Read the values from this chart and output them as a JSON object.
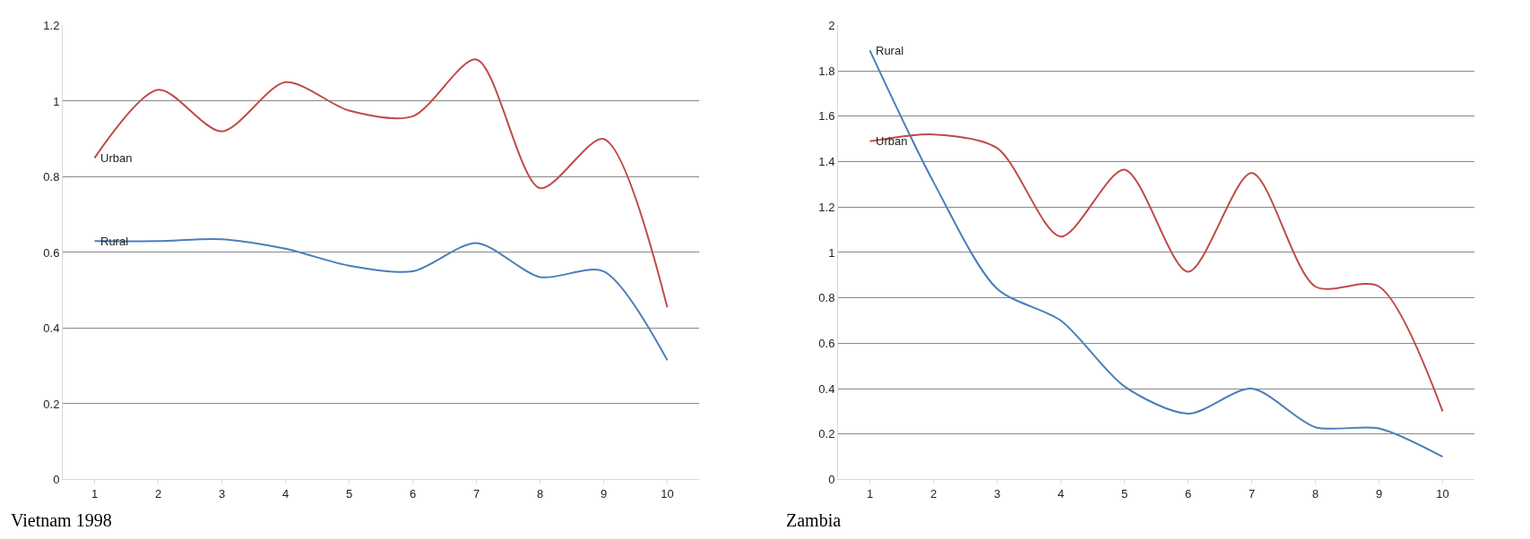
{
  "chart_data": [
    {
      "type": "line",
      "x": [
        1,
        2,
        3,
        4,
        5,
        6,
        7,
        8,
        9,
        10
      ],
      "xlim": [
        0.5,
        10.5
      ],
      "xticks": [
        1,
        2,
        3,
        4,
        5,
        6,
        7,
        8,
        9,
        10
      ],
      "ylim": [
        0,
        1.2
      ],
      "yticks": [
        0,
        0.2,
        0.4,
        0.6,
        0.8,
        1,
        1.2
      ],
      "grid": "y",
      "legend": false,
      "marker": "none",
      "line_style": "solid",
      "annotations": [
        "Vietnam 1998"
      ],
      "series": [
        {
          "name": "Urban",
          "color": "#be4b48",
          "values": [
            0.85,
            1.03,
            0.92,
            1.05,
            0.975,
            0.96,
            1.11,
            0.77,
            0.9,
            0.455
          ]
        },
        {
          "name": "Rural",
          "color": "#4a7ebb",
          "values": [
            0.63,
            0.63,
            0.635,
            0.61,
            0.565,
            0.55,
            0.625,
            0.535,
            0.55,
            0.315
          ]
        }
      ]
    },
    {
      "type": "line",
      "x": [
        1,
        2,
        3,
        4,
        5,
        6,
        7,
        8,
        9,
        10
      ],
      "xlim": [
        0.5,
        10.5
      ],
      "xticks": [
        1,
        2,
        3,
        4,
        5,
        6,
        7,
        8,
        9,
        10
      ],
      "ylim": [
        0,
        2
      ],
      "yticks": [
        0,
        0.2,
        0.4,
        0.6,
        0.8,
        1,
        1.2,
        1.4,
        1.6,
        1.8,
        2
      ],
      "grid": "y",
      "legend": false,
      "marker": "none",
      "line_style": "solid",
      "annotations": [
        "Zambia"
      ],
      "series": [
        {
          "name": "Rural",
          "color": "#4a7ebb",
          "values": [
            1.89,
            1.31,
            0.84,
            0.7,
            0.41,
            0.29,
            0.4,
            0.23,
            0.225,
            0.1
          ]
        },
        {
          "name": "Urban",
          "color": "#be4b48",
          "values": [
            1.49,
            1.52,
            1.46,
            1.07,
            1.365,
            0.915,
            1.35,
            0.85,
            0.85,
            0.3
          ]
        }
      ]
    }
  ]
}
